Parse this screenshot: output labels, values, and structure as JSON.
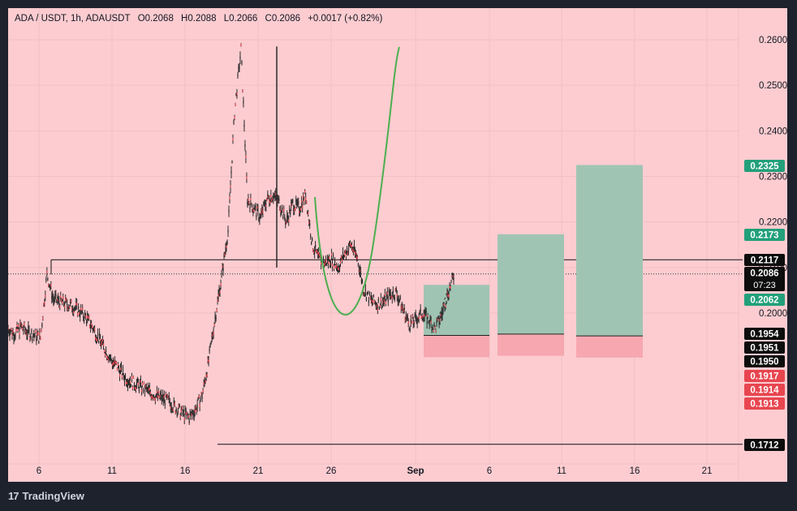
{
  "header": {
    "symbol": "ADA / USDT, 1h, ADAUSDT",
    "open": "O0.2068",
    "high": "H0.2088",
    "low": "L0.2066",
    "close": "C0.2086",
    "change": "+0.0017 (+0.82%)"
  },
  "footer": {
    "logo_mark": "17",
    "brand": "TradingView"
  },
  "colors": {
    "background": "#fcccd0",
    "frame": "#1e222d",
    "candle": "#2b2b2b",
    "cup_curve": "#4caf50",
    "target_zone": "#a0c4b3",
    "stop_zone": "#f7a7b0",
    "tag_green": "#22a07a",
    "tag_red": "#e8454f",
    "tag_black": "#0d0d0d"
  },
  "chart_data": {
    "type": "line",
    "title": "ADA / USDT, 1h, ADAUSDT",
    "xlabel": "",
    "ylabel": "",
    "x_ticks": [
      "6",
      "11",
      "16",
      "21",
      "26",
      "Sep",
      "6",
      "11",
      "16",
      "21"
    ],
    "y_ticks": [
      "0.2000",
      "0.2100",
      "0.2200",
      "0.2300",
      "0.2400",
      "0.2500",
      "0.2600"
    ],
    "ylim": [
      0.1695,
      0.2625
    ],
    "grid": true,
    "series": [
      {
        "values": [
          [
            0,
            0.1965
          ],
          [
            1,
            0.1955
          ],
          [
            2,
            0.197
          ],
          [
            3,
            0.1958
          ],
          [
            4,
            0.1952
          ],
          [
            5,
            0.1945
          ],
          [
            6,
            0.2085
          ],
          [
            7,
            0.203
          ],
          [
            8,
            0.2025
          ],
          [
            9,
            0.202
          ],
          [
            10,
            0.2015
          ],
          [
            11,
            0.2005
          ],
          [
            12,
            0.199
          ],
          [
            13,
            0.197
          ],
          [
            14,
            0.1945
          ],
          [
            15,
            0.192
          ],
          [
            16,
            0.1895
          ],
          [
            17,
            0.188
          ],
          [
            18,
            0.186
          ],
          [
            19,
            0.185
          ],
          [
            20,
            0.1842
          ],
          [
            21,
            0.1835
          ],
          [
            22,
            0.1825
          ],
          [
            23,
            0.1818
          ],
          [
            24,
            0.1812
          ],
          [
            25,
            0.1805
          ],
          [
            26,
            0.179
          ],
          [
            27,
            0.178
          ],
          [
            28,
            0.177
          ],
          [
            29,
            0.179
          ],
          [
            30,
            0.182
          ],
          [
            31,
            0.1895
          ],
          [
            32,
            0.199
          ],
          [
            33,
            0.208
          ],
          [
            34,
            0.218
          ],
          [
            35,
            0.244
          ],
          [
            36,
            0.258
          ],
          [
            37,
            0.225
          ],
          [
            38,
            0.223
          ],
          [
            39,
            0.221
          ],
          [
            40,
            0.225
          ],
          [
            41,
            0.226
          ],
          [
            42,
            0.224
          ],
          [
            43,
            0.22
          ],
          [
            44,
            0.224
          ],
          [
            45,
            0.223
          ],
          [
            46,
            0.226
          ],
          [
            47,
            0.215
          ],
          [
            48,
            0.212
          ],
          [
            49,
            0.211
          ],
          [
            50,
            0.212
          ],
          [
            51,
            0.21
          ],
          [
            52,
            0.213
          ],
          [
            53,
            0.215
          ],
          [
            54,
            0.212
          ],
          [
            55,
            0.205
          ],
          [
            56,
            0.203
          ],
          [
            57,
            0.202
          ],
          [
            58,
            0.2025
          ],
          [
            59,
            0.204
          ],
          [
            60,
            0.2045
          ],
          [
            61,
            0.201
          ],
          [
            62,
            0.1975
          ],
          [
            63,
            0.1985
          ],
          [
            64,
            0.2
          ],
          [
            65,
            0.1985
          ],
          [
            66,
            0.1965
          ],
          [
            67,
            0.1995
          ],
          [
            68,
            0.2045
          ],
          [
            69,
            0.2085
          ]
        ],
        "comment_x": "x is hours-scale index along date axis"
      }
    ],
    "price_tags": [
      {
        "value": "0.2325",
        "kind": "green"
      },
      {
        "value": "0.2173",
        "kind": "green"
      },
      {
        "value": "0.2117",
        "kind": "black"
      },
      {
        "value": "0.2086",
        "kind": "black",
        "sub": "07:23"
      },
      {
        "value": "0.2062",
        "kind": "green"
      },
      {
        "value": "0.1954",
        "kind": "black"
      },
      {
        "value": "0.1951",
        "kind": "black"
      },
      {
        "value": "0.1950",
        "kind": "black"
      },
      {
        "value": "0.1917",
        "kind": "red"
      },
      {
        "value": "0.1914",
        "kind": "red"
      },
      {
        "value": "0.1913",
        "kind": "red"
      },
      {
        "value": "0.1712",
        "kind": "black"
      }
    ],
    "horizontal_lines": [
      0.2117,
      0.1712
    ],
    "current_price": 0.2086,
    "positions": [
      {
        "entry": 0.1951,
        "target": 0.2062,
        "stop": 0.1914
      },
      {
        "entry": 0.1954,
        "target": 0.2173,
        "stop": 0.1917
      },
      {
        "entry": 0.195,
        "target": 0.2325,
        "stop": 0.1913
      }
    ]
  }
}
